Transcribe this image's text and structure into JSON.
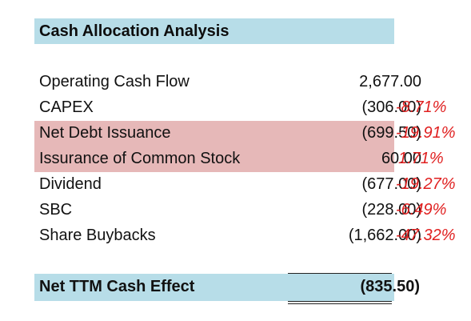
{
  "header": {
    "title": "Cash Allocation Analysis"
  },
  "rows": [
    {
      "label": "Operating Cash Flow",
      "value": "2,677.00",
      "pct": ""
    },
    {
      "label": "CAPEX",
      "value": "(306.00)",
      "pct": "-8.71%"
    },
    {
      "label": "Net Debt Issuance",
      "value": "(699.50)",
      "pct": "-19.91%"
    },
    {
      "label": "Issurance of Common Stock",
      "value": "60.00",
      "pct": "1.71%"
    },
    {
      "label": "Dividend",
      "value": "(677.00)",
      "pct": "-19.27%"
    },
    {
      "label": "SBC",
      "value": "(228.00)",
      "pct": "-6.49%"
    },
    {
      "label": "Share Buybacks",
      "value": "(1,662.00)",
      "pct": "-47.32%"
    }
  ],
  "total": {
    "label": "Net TTM Cash Effect",
    "value": "(835.50)"
  },
  "colors": {
    "header_fill": "#b7dde8",
    "highlight_fill": "#e6b8b8",
    "negative_pct": "#e02020"
  }
}
